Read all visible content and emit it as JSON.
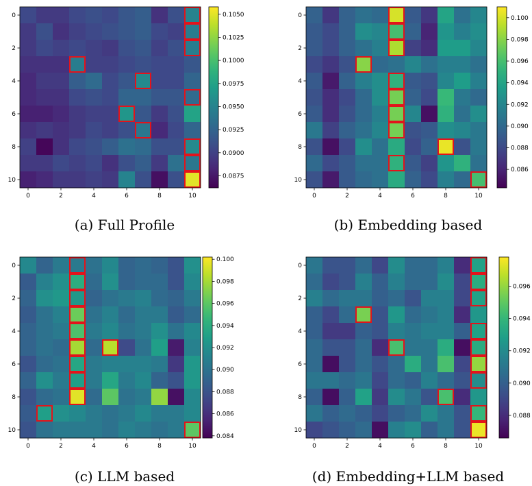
{
  "figure": {
    "captions": [
      "(a) Full Profile",
      "(b) Embedding based",
      "(c) LLM based",
      "(d) Embedding+LLM based"
    ]
  },
  "chart_data": [
    {
      "type": "heatmap",
      "caption": "(a) Full Profile",
      "x_ticks": [
        0,
        2,
        4,
        6,
        8,
        10
      ],
      "y_ticks": [
        0,
        2,
        4,
        6,
        8,
        10
      ],
      "colormap": "viridis",
      "vmin": 0.0862,
      "vmax": 0.1058,
      "colorbar_ticks": [
        "0.0875",
        "0.0900",
        "0.0925",
        "0.0950",
        "0.0975",
        "0.1000",
        "0.1025",
        "0.1050"
      ],
      "highlight_color": "#e3131b",
      "values": [
        [
          0.0905,
          0.0895,
          0.0895,
          0.0905,
          0.091,
          0.0905,
          0.0915,
          0.092,
          0.089,
          0.091,
          0.095
        ],
        [
          0.0895,
          0.091,
          0.089,
          0.09,
          0.0905,
          0.091,
          0.0915,
          0.092,
          0.0905,
          0.09,
          0.0945
        ],
        [
          0.0895,
          0.0905,
          0.09,
          0.0905,
          0.09,
          0.0895,
          0.091,
          0.0915,
          0.09,
          0.091,
          0.0945
        ],
        [
          0.089,
          0.089,
          0.089,
          0.0945,
          0.09,
          0.09,
          0.0905,
          0.091,
          0.0905,
          0.0905,
          0.0915
        ],
        [
          0.0885,
          0.0895,
          0.0895,
          0.092,
          0.093,
          0.0905,
          0.0915,
          0.0955,
          0.0905,
          0.0905,
          0.0925
        ],
        [
          0.0885,
          0.089,
          0.089,
          0.0905,
          0.091,
          0.0905,
          0.0925,
          0.0925,
          0.0915,
          0.0915,
          0.093
        ],
        [
          0.088,
          0.088,
          0.0885,
          0.0895,
          0.09,
          0.09,
          0.0965,
          0.0915,
          0.0895,
          0.091,
          0.0975
        ],
        [
          0.089,
          0.0895,
          0.089,
          0.0895,
          0.0905,
          0.09,
          0.091,
          0.094,
          0.0885,
          0.0905,
          0.0925
        ],
        [
          0.09,
          0.0865,
          0.089,
          0.0905,
          0.091,
          0.092,
          0.0935,
          0.093,
          0.091,
          0.091,
          0.0955
        ],
        [
          0.0895,
          0.0895,
          0.0905,
          0.09,
          0.0905,
          0.089,
          0.091,
          0.092,
          0.0895,
          0.0935,
          0.094
        ],
        [
          0.088,
          0.0885,
          0.0895,
          0.0895,
          0.09,
          0.0895,
          0.095,
          0.091,
          0.087,
          0.091,
          0.105
        ]
      ],
      "highlights": [
        [
          0,
          10
        ],
        [
          1,
          10
        ],
        [
          2,
          10
        ],
        [
          3,
          3
        ],
        [
          4,
          7
        ],
        [
          5,
          10
        ],
        [
          6,
          6
        ],
        [
          7,
          7
        ],
        [
          8,
          10
        ],
        [
          9,
          10
        ],
        [
          10,
          10
        ]
      ]
    },
    {
      "type": "heatmap",
      "caption": "(b) Embedding based",
      "x_ticks": [
        0,
        2,
        4,
        6,
        8,
        10
      ],
      "y_ticks": [
        0,
        2,
        4,
        6,
        8,
        10
      ],
      "colormap": "viridis",
      "vmin": 0.0843,
      "vmax": 0.101,
      "colorbar_ticks": [
        "0.086",
        "0.088",
        "0.090",
        "0.092",
        "0.094",
        "0.096",
        "0.098",
        "0.100"
      ],
      "highlight_color": "#e3131b",
      "values": [
        [
          0.0895,
          0.087,
          0.0895,
          0.0905,
          0.09,
          0.1,
          0.089,
          0.087,
          0.094,
          0.0905,
          0.092
        ],
        [
          0.089,
          0.088,
          0.0895,
          0.0925,
          0.092,
          0.096,
          0.0895,
          0.086,
          0.093,
          0.0915,
          0.0925
        ],
        [
          0.089,
          0.088,
          0.0895,
          0.0905,
          0.0915,
          0.099,
          0.0875,
          0.0865,
          0.0935,
          0.0935,
          0.092
        ],
        [
          0.088,
          0.087,
          0.0885,
          0.098,
          0.09,
          0.0905,
          0.092,
          0.0905,
          0.0915,
          0.0915,
          0.0905
        ],
        [
          0.089,
          0.0855,
          0.0895,
          0.0915,
          0.0925,
          0.095,
          0.089,
          0.0885,
          0.092,
          0.0935,
          0.0915
        ],
        [
          0.0885,
          0.0865,
          0.088,
          0.09,
          0.0925,
          0.0975,
          0.0895,
          0.088,
          0.0955,
          0.091,
          0.09
        ],
        [
          0.089,
          0.0865,
          0.0885,
          0.09,
          0.0915,
          0.0975,
          0.092,
          0.085,
          0.095,
          0.0905,
          0.0925
        ],
        [
          0.091,
          0.0875,
          0.0895,
          0.0905,
          0.092,
          0.0975,
          0.0885,
          0.089,
          0.0925,
          0.092,
          0.091
        ],
        [
          0.0885,
          0.085,
          0.088,
          0.0925,
          0.0905,
          0.0945,
          0.088,
          0.0895,
          0.1005,
          0.0885,
          0.091
        ],
        [
          0.09,
          0.088,
          0.089,
          0.0905,
          0.0905,
          0.095,
          0.089,
          0.0875,
          0.093,
          0.095,
          0.0905
        ],
        [
          0.0885,
          0.0855,
          0.089,
          0.09,
          0.0905,
          0.0945,
          0.0895,
          0.088,
          0.0915,
          0.09,
          0.096
        ]
      ],
      "highlights": [
        [
          0,
          5
        ],
        [
          1,
          5
        ],
        [
          2,
          5
        ],
        [
          3,
          3
        ],
        [
          4,
          5
        ],
        [
          5,
          5
        ],
        [
          6,
          5
        ],
        [
          7,
          5
        ],
        [
          8,
          8
        ],
        [
          9,
          5
        ],
        [
          10,
          10
        ]
      ]
    },
    {
      "type": "heatmap",
      "caption": "(c) LLM based",
      "x_ticks": [
        0,
        2,
        4,
        6,
        8,
        10
      ],
      "y_ticks": [
        0,
        2,
        4,
        6,
        8,
        10
      ],
      "colormap": "viridis",
      "vmin": 0.0838,
      "vmax": 0.1002,
      "colorbar_ticks": [
        "0.084",
        "0.086",
        "0.088",
        "0.090",
        "0.092",
        "0.094",
        "0.096",
        "0.098",
        "0.100"
      ],
      "highlight_color": "#e3131b",
      "values": [
        [
          0.0915,
          0.089,
          0.0905,
          0.0905,
          0.09,
          0.0915,
          0.089,
          0.0895,
          0.089,
          0.088,
          0.092
        ],
        [
          0.0885,
          0.091,
          0.092,
          0.094,
          0.0895,
          0.092,
          0.089,
          0.0895,
          0.0895,
          0.088,
          0.0915
        ],
        [
          0.089,
          0.092,
          0.0925,
          0.0925,
          0.089,
          0.09,
          0.0905,
          0.091,
          0.0895,
          0.089,
          0.0905
        ],
        [
          0.0885,
          0.09,
          0.091,
          0.0965,
          0.09,
          0.091,
          0.0895,
          0.0905,
          0.0905,
          0.0885,
          0.0895
        ],
        [
          0.089,
          0.09,
          0.0905,
          0.0955,
          0.0905,
          0.0915,
          0.09,
          0.0905,
          0.092,
          0.09,
          0.0915
        ],
        [
          0.089,
          0.09,
          0.0895,
          0.098,
          0.0895,
          0.0985,
          0.0875,
          0.09,
          0.093,
          0.085,
          0.091
        ],
        [
          0.088,
          0.0895,
          0.09,
          0.0935,
          0.0905,
          0.091,
          0.091,
          0.091,
          0.0905,
          0.0865,
          0.0925
        ],
        [
          0.089,
          0.092,
          0.0905,
          0.093,
          0.0905,
          0.0935,
          0.0905,
          0.0915,
          0.089,
          0.088,
          0.0925
        ],
        [
          0.088,
          0.0895,
          0.09,
          0.0995,
          0.0895,
          0.096,
          0.09,
          0.0905,
          0.0975,
          0.0845,
          0.0915
        ],
        [
          0.0885,
          0.093,
          0.092,
          0.0915,
          0.0905,
          0.09,
          0.0905,
          0.0915,
          0.0905,
          0.0905,
          0.0915
        ],
        [
          0.088,
          0.09,
          0.0905,
          0.0905,
          0.0905,
          0.09,
          0.091,
          0.0905,
          0.09,
          0.0905,
          0.096
        ]
      ],
      "highlights": [
        [
          0,
          3
        ],
        [
          1,
          3
        ],
        [
          2,
          3
        ],
        [
          3,
          3
        ],
        [
          4,
          3
        ],
        [
          5,
          3
        ],
        [
          5,
          5
        ],
        [
          6,
          3
        ],
        [
          7,
          3
        ],
        [
          8,
          3
        ],
        [
          9,
          1
        ],
        [
          10,
          10
        ]
      ]
    },
    {
      "type": "heatmap",
      "caption": "(d) Embedding+LLM based",
      "x_ticks": [
        0,
        2,
        4,
        6,
        8,
        10
      ],
      "y_ticks": [
        0,
        2,
        4,
        6,
        8,
        10
      ],
      "colormap": "viridis",
      "vmin": 0.0866,
      "vmax": 0.0978,
      "colorbar_ticks": [
        "0.088",
        "0.090",
        "0.092",
        "0.094",
        "0.096"
      ],
      "highlight_color": "#e3131b",
      "values": [
        [
          0.091,
          0.0895,
          0.0895,
          0.0905,
          0.089,
          0.092,
          0.0905,
          0.0905,
          0.0915,
          0.088,
          0.093
        ],
        [
          0.0905,
          0.089,
          0.0895,
          0.0915,
          0.09,
          0.0915,
          0.0905,
          0.0905,
          0.092,
          0.089,
          0.0935
        ],
        [
          0.0915,
          0.0905,
          0.091,
          0.091,
          0.09,
          0.0905,
          0.0895,
          0.0915,
          0.0915,
          0.089,
          0.093
        ],
        [
          0.09,
          0.089,
          0.0905,
          0.0955,
          0.0895,
          0.0925,
          0.0905,
          0.091,
          0.0915,
          0.088,
          0.0925
        ],
        [
          0.09,
          0.0885,
          0.0885,
          0.09,
          0.0895,
          0.0915,
          0.091,
          0.0915,
          0.0915,
          0.09,
          0.093
        ],
        [
          0.0905,
          0.0895,
          0.0895,
          0.0905,
          0.088,
          0.0945,
          0.091,
          0.091,
          0.0935,
          0.087,
          0.0935
        ],
        [
          0.0905,
          0.087,
          0.0895,
          0.0905,
          0.0895,
          0.0905,
          0.0935,
          0.091,
          0.0945,
          0.089,
          0.096
        ],
        [
          0.091,
          0.091,
          0.0905,
          0.091,
          0.089,
          0.0905,
          0.09,
          0.0915,
          0.0905,
          0.0895,
          0.092
        ],
        [
          0.09,
          0.087,
          0.09,
          0.093,
          0.0885,
          0.092,
          0.091,
          0.0895,
          0.0945,
          0.088,
          0.0925
        ],
        [
          0.091,
          0.09,
          0.0905,
          0.09,
          0.089,
          0.09,
          0.0905,
          0.092,
          0.091,
          0.0895,
          0.094
        ],
        [
          0.089,
          0.0895,
          0.09,
          0.0905,
          0.087,
          0.0915,
          0.092,
          0.09,
          0.091,
          0.0895,
          0.0975
        ]
      ],
      "highlights": [
        [
          0,
          10
        ],
        [
          1,
          10
        ],
        [
          2,
          10
        ],
        [
          3,
          3
        ],
        [
          4,
          10
        ],
        [
          5,
          5
        ],
        [
          5,
          10
        ],
        [
          6,
          10
        ],
        [
          7,
          10
        ],
        [
          8,
          8
        ],
        [
          9,
          10
        ],
        [
          10,
          10
        ]
      ]
    }
  ]
}
